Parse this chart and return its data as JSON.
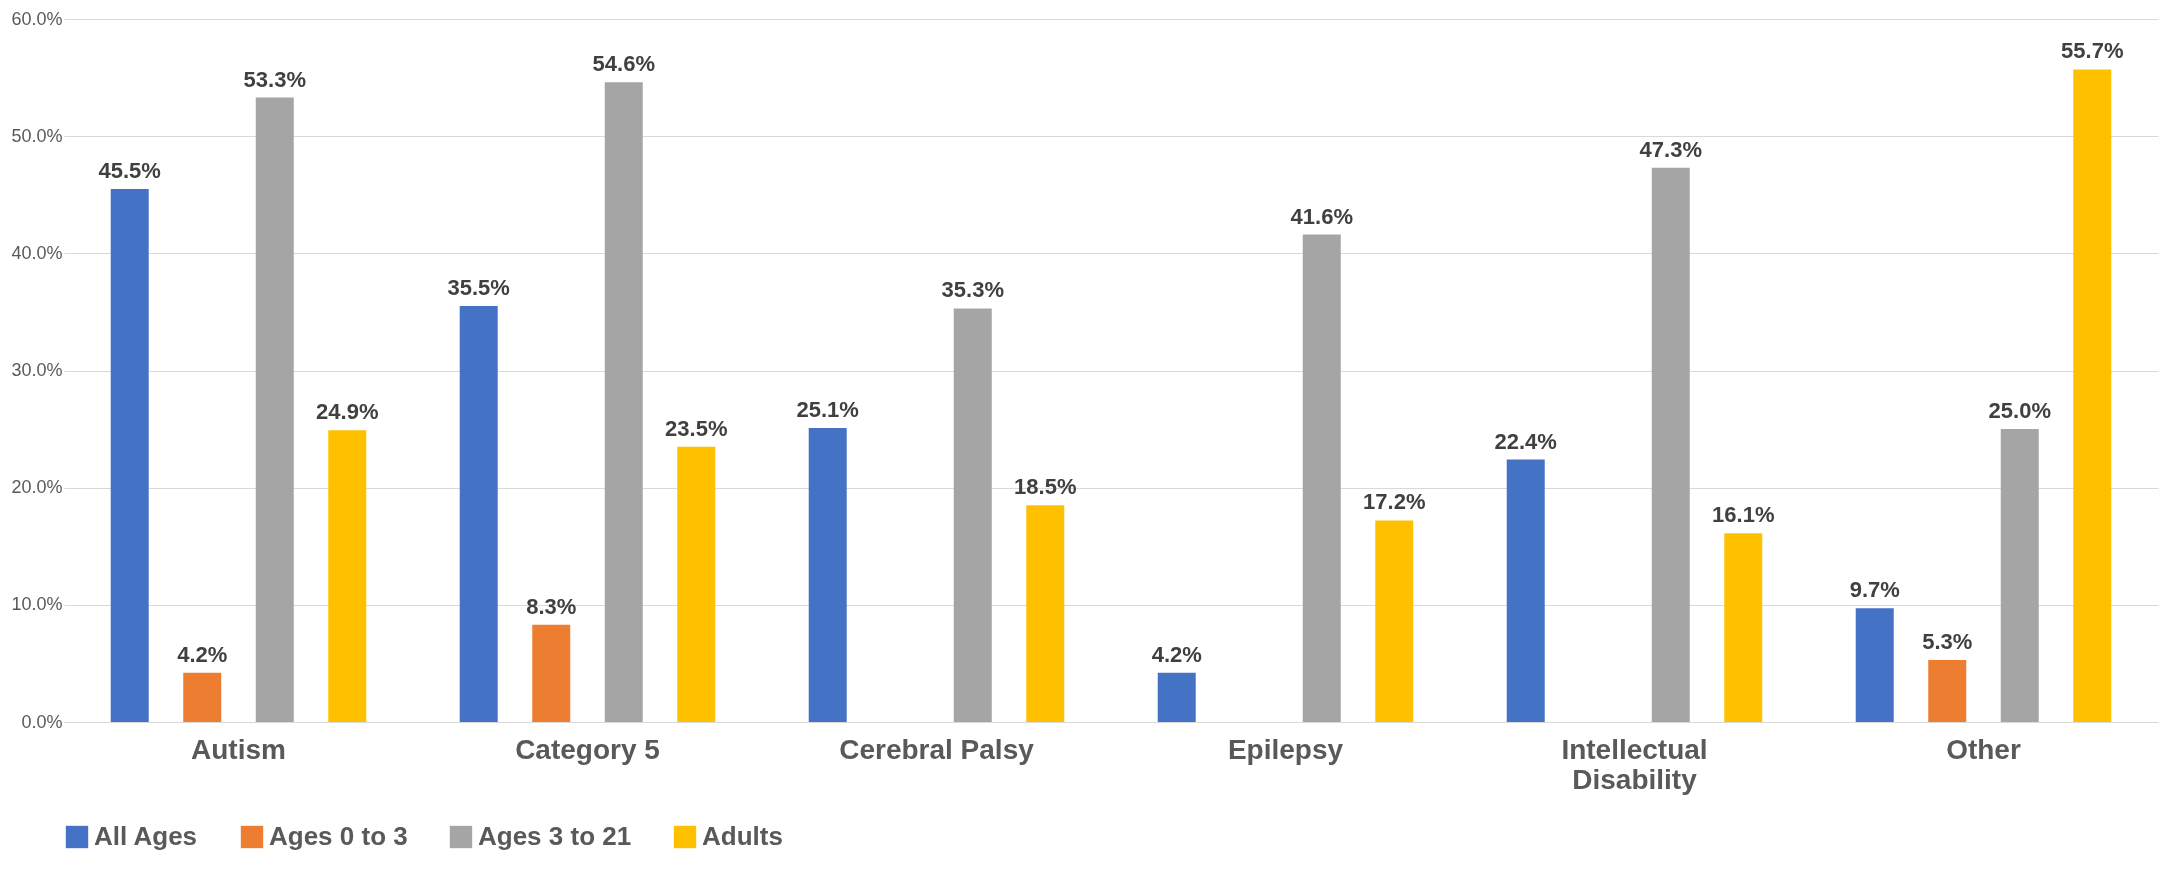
{
  "chart_data": {
    "type": "bar",
    "categories": [
      "Autism",
      "Category 5",
      "Cerebral Palsy",
      "Epilepsy",
      "Intellectual Disability",
      "Other"
    ],
    "series": [
      {
        "name": "All Ages",
        "color": "#4472c4",
        "values": [
          45.5,
          35.5,
          25.1,
          4.2,
          22.4,
          9.7
        ],
        "value_labels": [
          "45.5%",
          "35.5%",
          "25.1%",
          "4.2%",
          "22.4%",
          "9.7%"
        ]
      },
      {
        "name": "Ages 0 to 3",
        "color": "#ed7d31",
        "values": [
          4.2,
          8.3,
          null,
          null,
          null,
          5.3
        ],
        "value_labels": [
          "4.2%",
          "8.3%",
          null,
          null,
          null,
          "5.3%"
        ]
      },
      {
        "name": "Ages 3 to 21",
        "color": "#a5a5a5",
        "values": [
          53.3,
          54.6,
          35.3,
          41.6,
          47.3,
          25.0
        ],
        "value_labels": [
          "53.3%",
          "54.6%",
          "35.3%",
          "41.6%",
          "47.3%",
          "25.0%"
        ]
      },
      {
        "name": "Adults",
        "color": "#ffc000",
        "values": [
          24.9,
          23.5,
          18.5,
          17.2,
          16.1,
          55.7
        ],
        "value_labels": [
          "24.9%",
          "23.5%",
          "18.5%",
          "17.2%",
          "16.1%",
          "55.7%"
        ]
      }
    ],
    "ylim": [
      0,
      60
    ],
    "yticks": [
      {
        "value": 0,
        "label": "0.0%"
      },
      {
        "value": 10,
        "label": "10.0%"
      },
      {
        "value": 20,
        "label": "20.0%"
      },
      {
        "value": 30,
        "label": "30.0%"
      },
      {
        "value": 40,
        "label": "40.0%"
      },
      {
        "value": 50,
        "label": "50.0%"
      },
      {
        "value": 60,
        "label": "60.0%"
      }
    ],
    "grid": "y",
    "legend": "bottom"
  }
}
